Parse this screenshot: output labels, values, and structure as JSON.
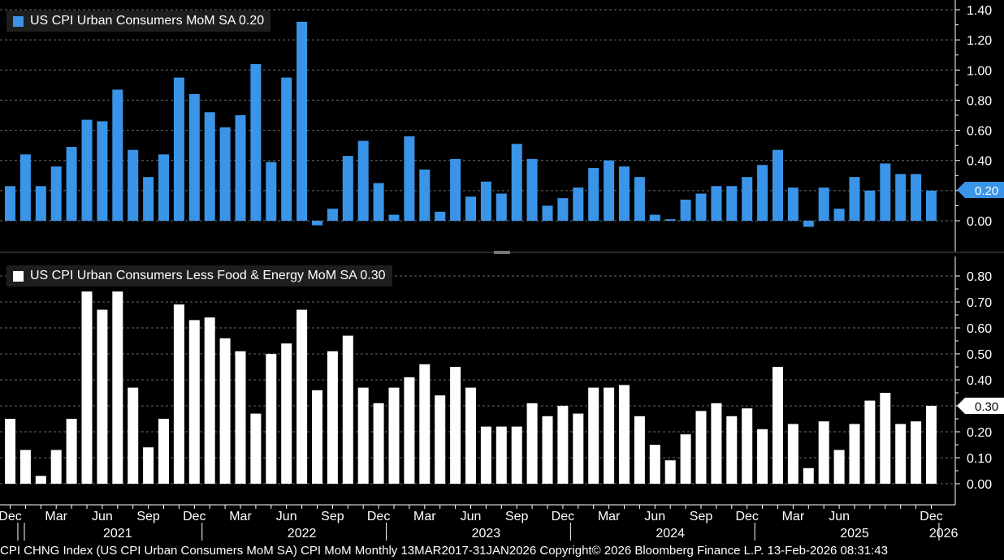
{
  "colors": {
    "top_bar": "#3a95e8",
    "bottom_bar": "#ffffff",
    "badge_top": "#3a95e8",
    "badge_bottom": "#ffffff"
  },
  "chart_data": [
    {
      "type": "bar",
      "title": "US CPI Urban Consumers MoM SA 0.20",
      "legend_label": "US CPI Urban Consumers MoM SA 0.20",
      "last_value_label": "0.20",
      "ylim": [
        -0.2,
        1.4
      ],
      "yticks": [
        "1.40",
        "1.20",
        "1.00",
        "0.80",
        "0.60",
        "0.40",
        "0.20",
        "0.00"
      ],
      "values": [
        0.23,
        0.44,
        0.23,
        0.36,
        0.49,
        0.67,
        0.66,
        0.87,
        0.47,
        0.29,
        0.44,
        0.95,
        0.84,
        0.72,
        0.62,
        0.7,
        1.04,
        0.39,
        0.95,
        1.32,
        -0.03,
        0.08,
        0.43,
        0.53,
        0.25,
        0.04,
        0.56,
        0.34,
        0.06,
        0.41,
        0.16,
        0.26,
        0.18,
        0.51,
        0.41,
        0.1,
        0.15,
        0.22,
        0.35,
        0.4,
        0.36,
        0.29,
        0.04,
        0.01,
        0.14,
        0.18,
        0.23,
        0.23,
        0.29,
        0.37,
        0.47,
        0.22,
        -0.04,
        0.22,
        0.08,
        0.29,
        0.2,
        0.38,
        0.31,
        0.31,
        0.2
      ]
    },
    {
      "type": "bar",
      "title": "US CPI Urban Consumers Less Food & Energy MoM SA 0.30",
      "legend_label": "US CPI Urban Consumers Less Food & Energy MoM SA 0.30",
      "last_value_label": "0.30",
      "ylim": [
        -0.05,
        0.85
      ],
      "yticks": [
        "0.80",
        "0.70",
        "0.60",
        "0.50",
        "0.40",
        "0.30",
        "0.20",
        "0.10",
        "0.00"
      ],
      "values": [
        0.25,
        0.13,
        0.03,
        0.13,
        0.25,
        0.74,
        0.67,
        0.74,
        0.37,
        0.14,
        0.25,
        0.69,
        0.63,
        0.64,
        0.56,
        0.51,
        0.27,
        0.5,
        0.54,
        0.67,
        0.36,
        0.51,
        0.57,
        0.37,
        0.31,
        0.37,
        0.41,
        0.46,
        0.34,
        0.45,
        0.37,
        0.22,
        0.22,
        0.22,
        0.31,
        0.26,
        0.3,
        0.27,
        0.37,
        0.37,
        0.38,
        0.26,
        0.15,
        0.09,
        0.19,
        0.28,
        0.31,
        0.26,
        0.29,
        0.21,
        0.45,
        0.23,
        0.06,
        0.24,
        0.13,
        0.23,
        0.32,
        0.35,
        0.23,
        0.24,
        0.3
      ]
    }
  ],
  "x_axis": {
    "month_labels": [
      "Dec",
      "Mar",
      "Jun",
      "Sep",
      "Dec",
      "Mar",
      "Jun",
      "Sep",
      "Dec",
      "Mar",
      "Jun",
      "Sep",
      "Dec",
      "Mar",
      "Jun",
      "Sep",
      "Dec",
      "Mar",
      "Jun",
      "Dec"
    ],
    "month_label_index": [
      0,
      3,
      6,
      9,
      12,
      15,
      18,
      21,
      24,
      27,
      30,
      33,
      36,
      39,
      42,
      45,
      48,
      51,
      54,
      60
    ],
    "year_labels": [
      "2021",
      "2022",
      "2023",
      "2024",
      "2025",
      "2026"
    ],
    "year_label_index": [
      7,
      19,
      31,
      43,
      55,
      60.8
    ]
  },
  "footer": {
    "text": "CPI CHNG Index (US CPI Urban Consumers MoM SA) CPI MoM Monthly 13MAR2017-31JAN2026 Copyright© 2026 Bloomberg Finance L.P. 13-Feb-2026 08:31:43"
  }
}
